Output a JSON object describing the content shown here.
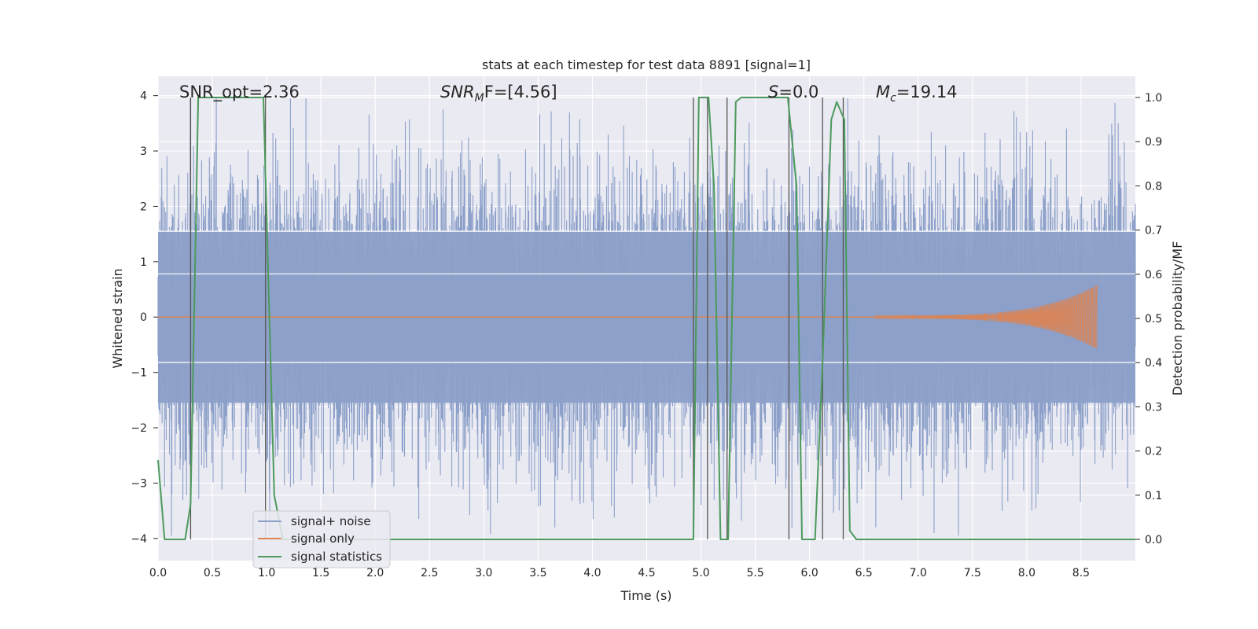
{
  "chart_data": {
    "type": "line",
    "title": "stats at each timestep for test data 8891 [signal=1]",
    "xlabel": "Time (s)",
    "ylabel": "Whitened strain",
    "y2label": "Detection probability/MF",
    "xlim": [
      0.0,
      9.0
    ],
    "ylim": [
      -4.4,
      4.35
    ],
    "y2lim": [
      -0.048,
      1.048
    ],
    "grid": true,
    "legend_position": "lower-left",
    "x_ticks": [
      "0.0",
      "0.5",
      "1.0",
      "1.5",
      "2.0",
      "2.5",
      "3.0",
      "3.5",
      "4.0",
      "4.5",
      "5.0",
      "5.5",
      "6.0",
      "6.5",
      "7.0",
      "7.5",
      "8.0",
      "8.5"
    ],
    "y_ticks": [
      "4",
      "3",
      "2",
      "1",
      "0",
      "−1",
      "−2",
      "−3",
      "−4"
    ],
    "y2_ticks": [
      "1.0",
      "0.9",
      "0.8",
      "0.7",
      "0.6",
      "0.5",
      "0.4",
      "0.3",
      "0.2",
      "0.1",
      "0.0"
    ],
    "annotations": {
      "snr_opt": "SNR_opt=2.36",
      "snr_mf_main": "SNR",
      "snr_mf_sub": "M",
      "snr_mf_rest": "F=[4.56]",
      "s_main": "S",
      "s_rest": "=0.0",
      "mc_main": "M",
      "mc_sub": "c",
      "mc_rest": "=19.14"
    },
    "series": [
      {
        "name": "signal+ noise",
        "color": "#8ca0c9",
        "noise_band_sigma": 1.55,
        "noise_peak_max": 3.95,
        "x_range": [
          0.0,
          9.0
        ]
      },
      {
        "name": "signal only",
        "color": "#dd8452",
        "chirp_start": 6.6,
        "chirp_end": 8.65,
        "chirp_peak_amplitude": 0.55
      },
      {
        "name": "signal statistics",
        "color": "#4c9a5c",
        "x": [
          0.0,
          0.06,
          0.25,
          0.3,
          0.37,
          0.97,
          1.07,
          1.15,
          2.0,
          3.0,
          4.0,
          4.93,
          4.98,
          5.07,
          5.12,
          5.18,
          5.25,
          5.32,
          5.37,
          5.8,
          5.88,
          5.93,
          6.05,
          6.12,
          6.2,
          6.25,
          6.32,
          6.37,
          6.43,
          7.0,
          8.0,
          9.0
        ],
        "y": [
          0.18,
          0.0,
          0.0,
          0.08,
          1.0,
          1.0,
          0.1,
          0.0,
          0.0,
          0.0,
          0.0,
          0.0,
          1.0,
          1.0,
          0.8,
          0.0,
          0.0,
          0.99,
          1.0,
          1.0,
          0.8,
          0.0,
          0.0,
          0.4,
          0.95,
          0.99,
          0.95,
          0.02,
          0.0,
          0.0,
          0.0,
          0.0
        ]
      }
    ],
    "vertical_markers": [
      0.3,
      0.99,
      4.93,
      5.06,
      5.24,
      5.81,
      6.12,
      6.31
    ]
  },
  "legend": {
    "items": [
      {
        "label": "signal+ noise",
        "color": "#8ca0c9"
      },
      {
        "label": "signal only",
        "color": "#dd8452"
      },
      {
        "label": "signal statistics",
        "color": "#4c9a5c"
      }
    ]
  },
  "colors": {
    "plot_background": "#eaeaf2",
    "grid": "#ffffff",
    "marker_line": "#555555"
  }
}
